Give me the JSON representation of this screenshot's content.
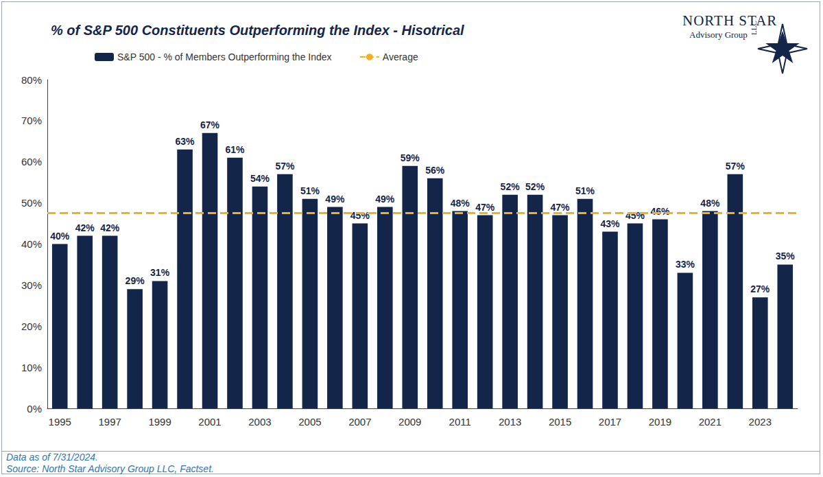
{
  "chart_data": {
    "type": "bar",
    "title": "% of S&P 500 Constituents Outperforming the Index - Hisotrical",
    "categories": [
      "1995",
      null,
      "1997",
      null,
      "1999",
      null,
      "2001",
      null,
      "2003",
      null,
      "2005",
      null,
      "2007",
      null,
      "2009",
      null,
      "2011",
      null,
      "2013",
      null,
      "2015",
      null,
      "2017",
      null,
      "2019",
      null,
      "2021",
      null,
      "2023",
      null
    ],
    "series": [
      {
        "name": "S&P 500 - % of Members Outperforming the Index",
        "type": "bar",
        "color": "#14254a",
        "values": [
          40,
          42,
          42,
          29,
          31,
          63,
          67,
          61,
          54,
          57,
          51,
          49,
          45,
          49,
          59,
          56,
          48,
          47,
          52,
          52,
          47,
          51,
          43,
          45,
          46,
          33,
          48,
          57,
          27,
          35
        ],
        "value_labels": [
          "40%",
          "42%",
          "42%",
          "29%",
          "31%",
          "63%",
          "67%",
          "61%",
          "54%",
          "57%",
          "51%",
          "49%",
          "45%",
          "49%",
          "59%",
          "56%",
          "48%",
          "47%",
          "52%",
          "52%",
          "47%",
          "51%",
          "43%",
          "45%",
          "46%",
          "33%",
          "48%",
          "57%",
          "27%",
          "35%"
        ]
      },
      {
        "name": "Average",
        "type": "line",
        "line_style": "dashed",
        "color": "#f2b01e",
        "value": 47.5
      }
    ],
    "ylim": [
      0,
      80
    ],
    "yticks": [
      {
        "value": 0,
        "label": "0%"
      },
      {
        "value": 10,
        "label": "10%"
      },
      {
        "value": 20,
        "label": "20%"
      },
      {
        "value": 30,
        "label": "30%"
      },
      {
        "value": 40,
        "label": "40%"
      },
      {
        "value": 50,
        "label": "50%"
      },
      {
        "value": 60,
        "label": "60%"
      },
      {
        "value": 70,
        "label": "70%"
      },
      {
        "value": 80,
        "label": "80%"
      }
    ],
    "grid": false,
    "legend": "top-left",
    "data_labels": true,
    "notes": [
      "Data as of 7/31/2024.",
      "Source: North Star Advisory Group LLC, Factset."
    ],
    "logo": {
      "name": "North Star",
      "subtitle": "Advisory Group",
      "suffix": "LLC"
    }
  }
}
